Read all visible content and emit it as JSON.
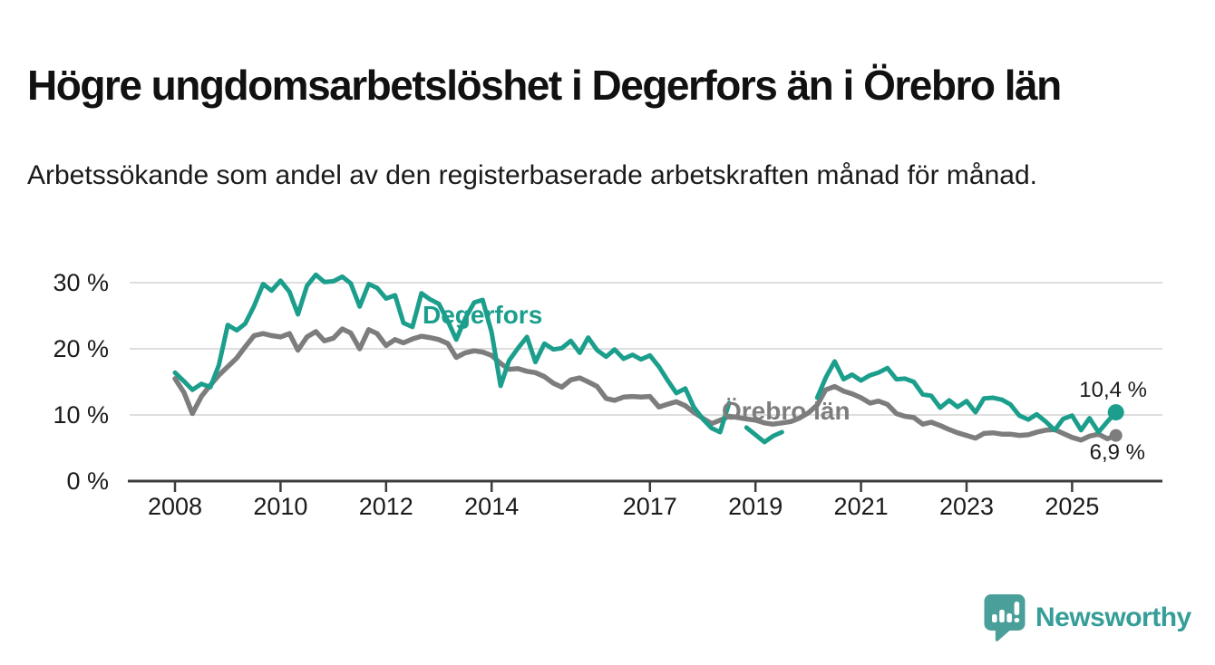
{
  "chart_data": {
    "type": "line",
    "title": "Högre ungdomsarbetslöshet i Degerfors än i Örebro län",
    "subtitle": "Arbetssökande som andel av den registerbaserade arbetskraften månad för månad.",
    "y_unit": "%",
    "x_unit": "year",
    "xlim": [
      2007.4,
      2026.4
    ],
    "ylim": [
      0,
      33
    ],
    "grid": "horizontal-only",
    "legend_position": "inline-labels-on-chart",
    "x_ticks": [
      {
        "value": 2008,
        "label": "2008"
      },
      {
        "value": 2010,
        "label": "2010"
      },
      {
        "value": 2012,
        "label": "2012"
      },
      {
        "value": 2014,
        "label": "2014"
      },
      {
        "value": 2017,
        "label": "2017"
      },
      {
        "value": 2019,
        "label": "2019"
      },
      {
        "value": 2021,
        "label": "2021"
      },
      {
        "value": 2023,
        "label": "2023"
      },
      {
        "value": 2025,
        "label": "2025"
      }
    ],
    "y_ticks": [
      {
        "value": 0,
        "label": "0 %"
      },
      {
        "value": 10,
        "label": "10 %"
      },
      {
        "value": 20,
        "label": "20 %"
      },
      {
        "value": 30,
        "label": "30 %"
      }
    ],
    "x": [
      2008,
      2008.17,
      2008.33,
      2008.5,
      2008.67,
      2008.83,
      2009,
      2009.17,
      2009.33,
      2009.5,
      2009.67,
      2009.83,
      2010,
      2010.17,
      2010.33,
      2010.5,
      2010.67,
      2010.83,
      2011,
      2011.17,
      2011.33,
      2011.5,
      2011.67,
      2011.83,
      2012,
      2012.17,
      2012.33,
      2012.5,
      2012.67,
      2012.83,
      2013,
      2013.17,
      2013.33,
      2013.5,
      2013.67,
      2013.83,
      2014,
      2014.17,
      2014.33,
      2014.5,
      2014.67,
      2014.83,
      2015,
      2015.17,
      2015.33,
      2015.5,
      2015.67,
      2015.83,
      2016,
      2016.17,
      2016.33,
      2016.5,
      2016.67,
      2016.83,
      2017,
      2017.17,
      2017.33,
      2017.5,
      2017.67,
      2017.83,
      2018,
      2018.17,
      2018.33,
      2018.5,
      2018.67,
      2018.83,
      2019,
      2019.17,
      2019.33,
      2019.5,
      2019.67,
      2019.83,
      2020,
      2020.17,
      2020.33,
      2020.5,
      2020.67,
      2020.83,
      2021,
      2021.17,
      2021.33,
      2021.5,
      2021.67,
      2021.83,
      2022,
      2022.17,
      2022.33,
      2022.5,
      2022.67,
      2022.83,
      2023,
      2023.17,
      2023.33,
      2023.5,
      2023.67,
      2023.83,
      2024,
      2024.17,
      2024.33,
      2024.5,
      2024.67,
      2024.83,
      2025,
      2025.17,
      2025.33,
      2025.5,
      2025.67,
      2025.83
    ],
    "series": [
      {
        "id": "orebro-lan",
        "name": "Örebro län",
        "color": "#7d7d7d",
        "end_label": "6,9 %",
        "end_value": 6.9,
        "values": [
          15.5,
          13.4,
          10.2,
          12.8,
          14.5,
          16.0,
          17.3,
          18.6,
          20.3,
          22.0,
          22.3,
          22.0,
          21.8,
          22.3,
          19.8,
          21.8,
          22.6,
          21.2,
          21.6,
          23.0,
          22.4,
          20.0,
          22.9,
          22.3,
          20.5,
          21.4,
          20.9,
          21.5,
          21.9,
          21.7,
          21.4,
          20.8,
          18.7,
          19.4,
          19.7,
          19.5,
          19.0,
          17.8,
          16.9,
          17.0,
          16.6,
          16.4,
          15.8,
          14.8,
          14.2,
          15.3,
          15.6,
          15.0,
          14.3,
          12.5,
          12.2,
          12.7,
          12.8,
          12.7,
          12.8,
          11.2,
          11.6,
          12.0,
          11.4,
          10.4,
          9.5,
          8.7,
          9.2,
          9.8,
          9.6,
          9.4,
          9.2,
          8.8,
          8.6,
          8.8,
          9.0,
          9.5,
          10.3,
          11.5,
          13.8,
          14.3,
          13.6,
          13.2,
          12.6,
          11.8,
          12.1,
          11.6,
          10.2,
          9.8,
          9.6,
          8.6,
          8.9,
          8.4,
          7.8,
          7.3,
          6.9,
          6.5,
          7.2,
          7.3,
          7.1,
          7.1,
          6.9,
          7.0,
          7.4,
          7.7,
          7.8,
          7.2,
          6.6,
          6.2,
          6.8,
          7.1,
          6.4,
          6.9
        ]
      },
      {
        "id": "degerfors",
        "name": "Degerfors",
        "color": "#1b9e8c",
        "end_label": "10,4 %",
        "end_value": 10.4,
        "values": [
          16.4,
          15.1,
          13.8,
          14.7,
          14.2,
          17.5,
          23.6,
          22.8,
          23.8,
          26.5,
          29.8,
          28.8,
          30.3,
          28.6,
          25.2,
          29.5,
          31.2,
          30.1,
          30.2,
          30.9,
          29.9,
          26.4,
          29.8,
          29.2,
          27.6,
          28.1,
          23.9,
          23.3,
          28.4,
          27.5,
          26.8,
          24.2,
          21.4,
          24.6,
          27.0,
          27.4,
          22.5,
          14.4,
          18.2,
          20.1,
          21.8,
          18.0,
          20.8,
          19.9,
          20.1,
          21.2,
          19.4,
          21.7,
          19.8,
          18.8,
          19.9,
          18.5,
          19.1,
          18.4,
          19.0,
          17.3,
          15.3,
          13.3,
          14.0,
          11.2,
          9.4,
          8.0,
          7.4,
          11.8,
          null,
          8.1,
          7.0,
          5.9,
          6.8,
          7.4,
          null,
          null,
          null,
          12.6,
          15.6,
          18.1,
          15.4,
          16.1,
          15.2,
          16.0,
          16.4,
          17.1,
          15.4,
          15.5,
          15.0,
          13.1,
          12.9,
          11.1,
          12.2,
          11.2,
          12.1,
          10.4,
          12.5,
          12.6,
          12.3,
          11.6,
          9.9,
          9.3,
          10.1,
          9.0,
          7.7,
          9.4,
          9.9,
          7.7,
          9.5,
          7.4,
          9.0,
          10.4
        ]
      }
    ]
  },
  "colors": {
    "degerfors_line": "#1b9e8c",
    "orebro_line": "#7d7d7d",
    "gridline": "#d9d9d9",
    "axis": "#3c3c3c",
    "brand_teal": "#359e98",
    "brand_icon": "#4a9f9b"
  },
  "footer": {
    "brand": "Newsworthy"
  }
}
